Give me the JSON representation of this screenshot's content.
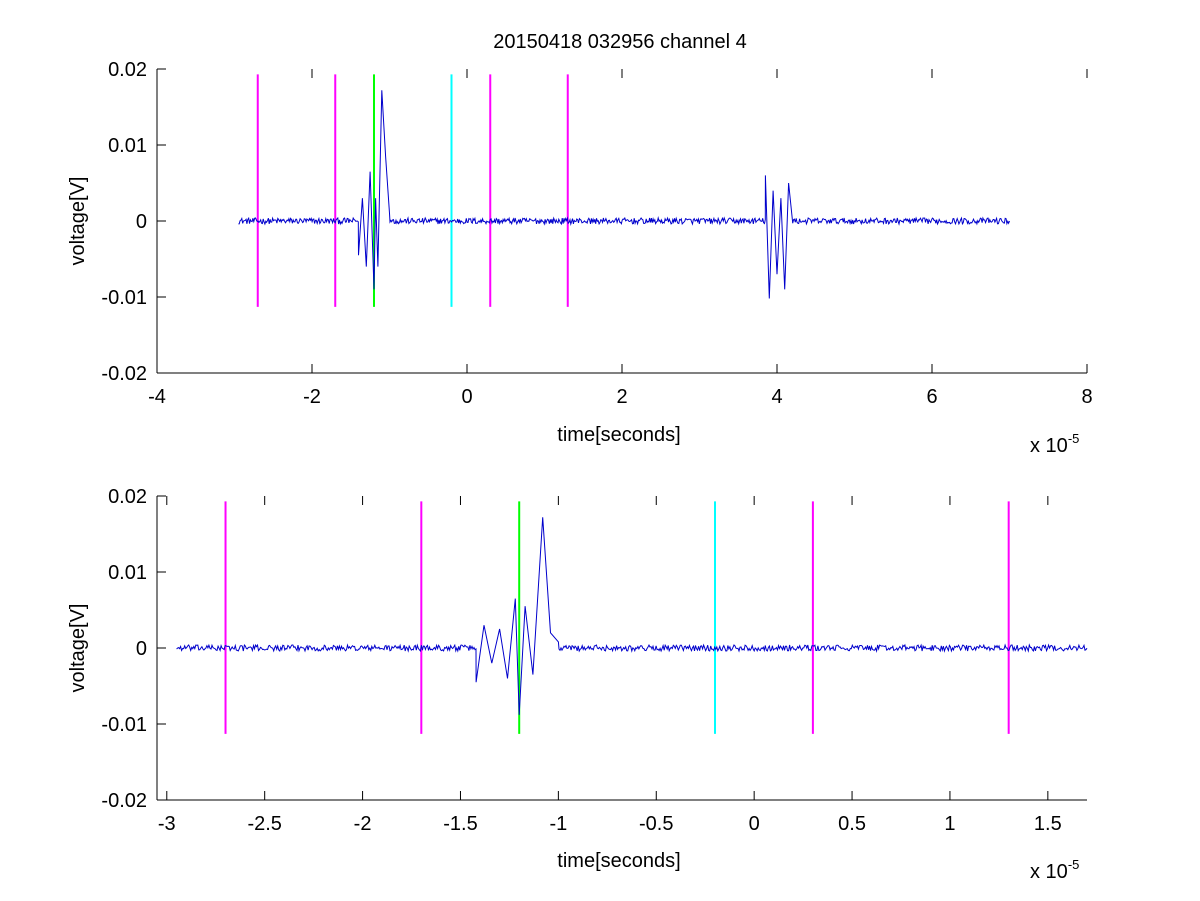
{
  "figure": {
    "title": "20150418 032956 channel 4"
  },
  "chart_data": [
    {
      "type": "line",
      "title": "20150418 032956 channel 4",
      "xlabel": "time[seconds]",
      "ylabel": "voltage[V]",
      "x_multiplier_base": "x 10",
      "x_multiplier_exp": "-5",
      "xlim": [
        -4,
        8
      ],
      "ylim": [
        -0.02,
        0.02
      ],
      "xticks": [
        "-4",
        "-2",
        "0",
        "2",
        "4",
        "6",
        "8"
      ],
      "xtick_values": [
        -4,
        -2,
        0,
        2,
        4,
        6,
        8
      ],
      "yticks": [
        "0.02",
        "0.01",
        "0",
        "-0.01",
        "-0.02"
      ],
      "ytick_values": [
        0.02,
        0.01,
        0,
        -0.01,
        -0.02
      ],
      "grid": false,
      "signal": {
        "color": "#0000cc",
        "x_range": [
          -2.95,
          7.0
        ],
        "noise_amplitude": 0.0004,
        "bursts": [
          {
            "x": [
              -1.4,
              -1.35,
              -1.3,
              -1.25,
              -1.2,
              -1.18,
              -1.15,
              -1.1,
              -1.05,
              -1.0
            ],
            "y": [
              -0.0045,
              0.003,
              -0.006,
              0.0065,
              -0.009,
              0.003,
              -0.006,
              0.0172,
              0.0085,
              0.001
            ]
          },
          {
            "x": [
              3.85,
              3.9,
              3.95,
              4.0,
              4.05,
              4.1,
              4.15,
              4.2
            ],
            "y": [
              0.006,
              -0.0102,
              0.004,
              -0.007,
              0.003,
              -0.009,
              0.005,
              0.0
            ]
          }
        ]
      },
      "markers": [
        {
          "x": -2.7,
          "color": "#ff00ff",
          "y_range": [
            -0.0113,
            0.0193
          ]
        },
        {
          "x": -1.7,
          "color": "#ff00ff",
          "y_range": [
            -0.0113,
            0.0193
          ]
        },
        {
          "x": -1.2,
          "color": "#00ff00",
          "y_range": [
            -0.0113,
            0.0193
          ]
        },
        {
          "x": -0.2,
          "color": "#00ffff",
          "y_range": [
            -0.0113,
            0.0193
          ]
        },
        {
          "x": 0.3,
          "color": "#ff00ff",
          "y_range": [
            -0.0113,
            0.0193
          ]
        },
        {
          "x": 1.3,
          "color": "#ff00ff",
          "y_range": [
            -0.0113,
            0.0193
          ]
        }
      ]
    },
    {
      "type": "line",
      "title": "",
      "xlabel": "time[seconds]",
      "ylabel": "voltage[V]",
      "x_multiplier_base": "x 10",
      "x_multiplier_exp": "-5",
      "xlim": [
        -3.05,
        1.7
      ],
      "ylim": [
        -0.02,
        0.02
      ],
      "xticks": [
        "-3",
        "-2.5",
        "-2",
        "-1.5",
        "-1",
        "-0.5",
        "0",
        "0.5",
        "1",
        "1.5"
      ],
      "xtick_values": [
        -3,
        -2.5,
        -2,
        -1.5,
        -1,
        -0.5,
        0,
        0.5,
        1,
        1.5
      ],
      "yticks": [
        "0.02",
        "0.01",
        "0",
        "-0.01",
        "-0.02"
      ],
      "ytick_values": [
        0.02,
        0.01,
        0,
        -0.01,
        -0.02
      ],
      "grid": false,
      "signal": {
        "color": "#0000cc",
        "x_range": [
          -2.95,
          1.7
        ],
        "noise_amplitude": 0.0004,
        "bursts": [
          {
            "x": [
              -1.42,
              -1.38,
              -1.34,
              -1.3,
              -1.26,
              -1.22,
              -1.2,
              -1.17,
              -1.13,
              -1.08,
              -1.04,
              -1.0
            ],
            "y": [
              -0.0045,
              0.003,
              -0.002,
              0.0025,
              -0.004,
              0.0065,
              -0.0088,
              0.0055,
              -0.0035,
              0.0172,
              0.002,
              0.0008
            ]
          }
        ]
      },
      "markers": [
        {
          "x": -2.7,
          "color": "#ff00ff",
          "y_range": [
            -0.0113,
            0.0193
          ]
        },
        {
          "x": -1.7,
          "color": "#ff00ff",
          "y_range": [
            -0.0113,
            0.0193
          ]
        },
        {
          "x": -1.2,
          "color": "#00ff00",
          "y_range": [
            -0.0113,
            0.0193
          ]
        },
        {
          "x": -0.2,
          "color": "#00ffff",
          "y_range": [
            -0.0113,
            0.0193
          ]
        },
        {
          "x": 0.3,
          "color": "#ff00ff",
          "y_range": [
            -0.0113,
            0.0193
          ]
        },
        {
          "x": 1.3,
          "color": "#ff00ff",
          "y_range": [
            -0.0113,
            0.0193
          ]
        }
      ]
    }
  ]
}
